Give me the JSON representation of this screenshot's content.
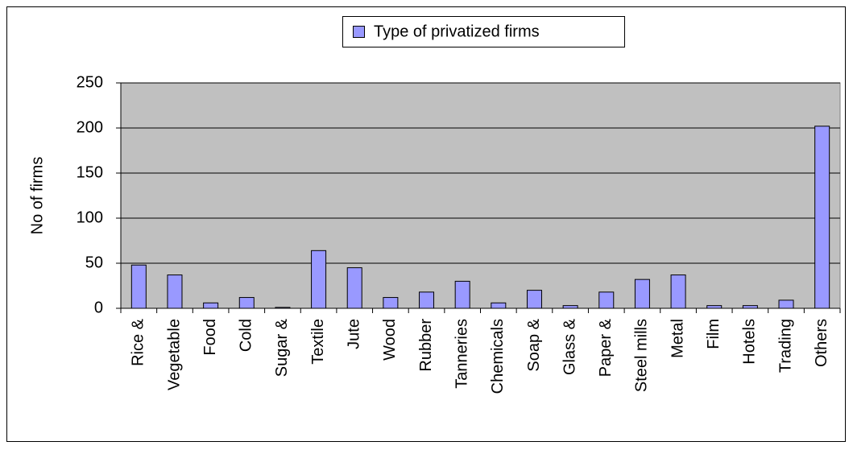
{
  "chart_data": {
    "type": "bar",
    "y_label": "No of firms",
    "categories": [
      "Rice &",
      "Vegetable",
      "Food",
      "Cold",
      "Sugar &",
      "Textile",
      "Jute",
      "Wood",
      "Rubber",
      "Tanneries",
      "Chemicals",
      "Soap &",
      "Glass &",
      "Paper &",
      "Steel mills",
      "Metal",
      "Film",
      "Hotels",
      "Trading",
      "Others"
    ],
    "series": [
      {
        "name": "Type of privatized firms",
        "color": "#9999ff",
        "values": [
          48,
          37,
          6,
          12,
          1,
          64,
          45,
          12,
          18,
          30,
          6,
          20,
          3,
          18,
          32,
          37,
          3,
          3,
          9,
          202
        ]
      }
    ],
    "ylim": [
      0,
      250
    ],
    "yticks": [
      0,
      50,
      100,
      150,
      200,
      250
    ],
    "grid": true,
    "legend": "top"
  }
}
